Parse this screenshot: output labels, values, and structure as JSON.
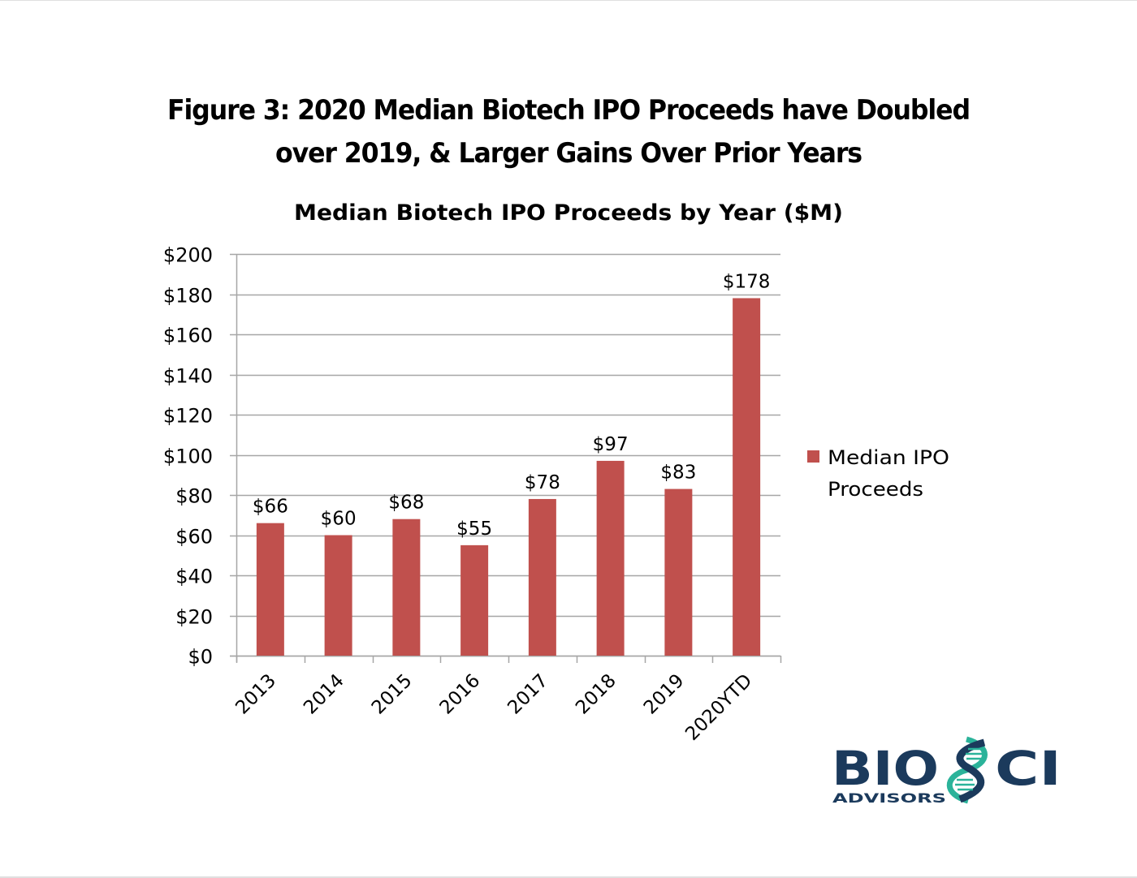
{
  "figure": {
    "title_lines": [
      "Figure 3:  2020 Median Biotech IPO Proceeds have Doubled",
      "over 2019, & Larger Gains Over Prior Years"
    ]
  },
  "chart_data": {
    "type": "bar",
    "title": "Median Biotech IPO Proceeds by Year ($M)",
    "xlabel": "",
    "ylabel": "",
    "categories": [
      "2013",
      "2014",
      "2015",
      "2016",
      "2017",
      "2018",
      "2019",
      "2020YTD"
    ],
    "series": [
      {
        "name": "Median IPO Proceeds",
        "legend_lines": [
          "Median IPO",
          "Proceeds"
        ],
        "color": "#c0504d",
        "values": [
          66,
          60,
          68,
          55,
          78,
          97,
          83,
          178
        ],
        "data_labels": [
          "$66",
          "$60",
          "$68",
          "$55",
          "$78",
          "$97",
          "$83",
          "$178"
        ]
      }
    ],
    "ylim": [
      0,
      200
    ],
    "yticks": [
      0,
      20,
      40,
      60,
      80,
      100,
      120,
      140,
      160,
      180,
      200
    ],
    "ytick_labels": [
      "$0",
      "$20",
      "$40",
      "$60",
      "$80",
      "$100",
      "$120",
      "$140",
      "$160",
      "$180",
      "$200"
    ],
    "grid": true,
    "legend_position": "right",
    "xtick_rotation": "-45deg",
    "colors": {
      "bar": "#c0504d",
      "grid": "#a6a6a6",
      "axis": "#a6a6a6",
      "text": "#000000"
    }
  },
  "logo": {
    "main_text_left": "BIO",
    "main_text_right": "CI",
    "sub_text": "ADVISORS",
    "colors": {
      "navy": "#1b3a5c",
      "teal": "#2bb39a"
    }
  }
}
